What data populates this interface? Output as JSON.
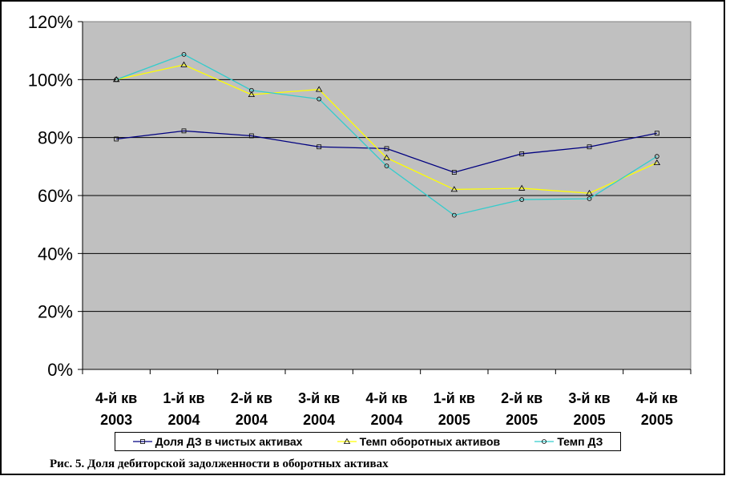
{
  "chart_data": {
    "type": "line",
    "categories": [
      [
        "4-й кв",
        "2003"
      ],
      [
        "1-й кв",
        "2004"
      ],
      [
        "2-й кв",
        "2004"
      ],
      [
        "3-й кв",
        "2004"
      ],
      [
        "4-й кв",
        "2004"
      ],
      [
        "1-й кв",
        "2005"
      ],
      [
        "2-й кв",
        "2005"
      ],
      [
        "3-й кв",
        "2005"
      ],
      [
        "4-й кв",
        "2005"
      ]
    ],
    "ylim": [
      0,
      120
    ],
    "yticks": [
      "0%",
      "20%",
      "40%",
      "60%",
      "80%",
      "100%",
      "120%"
    ],
    "grid": true,
    "plot_background": "#C0C0C0",
    "legend_position": "bottom",
    "series": [
      {
        "name": "Доля ДЗ в чистых активах",
        "color": "#000080",
        "marker": "square",
        "values": [
          79.5,
          82.3,
          80.6,
          76.8,
          76.2,
          68.0,
          74.4,
          76.8,
          81.5
        ]
      },
      {
        "name": "Темп оборотных активов",
        "color": "#FFFF00",
        "marker": "triangle",
        "values": [
          100.0,
          105.1,
          94.8,
          96.6,
          73.0,
          62.1,
          62.5,
          60.8,
          71.3
        ]
      },
      {
        "name": "Темп ДЗ",
        "color": "#33CCCC",
        "marker": "circle",
        "values": [
          100.0,
          108.7,
          96.3,
          93.3,
          70.2,
          53.2,
          58.6,
          58.9,
          73.5
        ]
      }
    ]
  },
  "caption": "Рис. 5. Доля дебиторской задолженности в оборотных активах"
}
